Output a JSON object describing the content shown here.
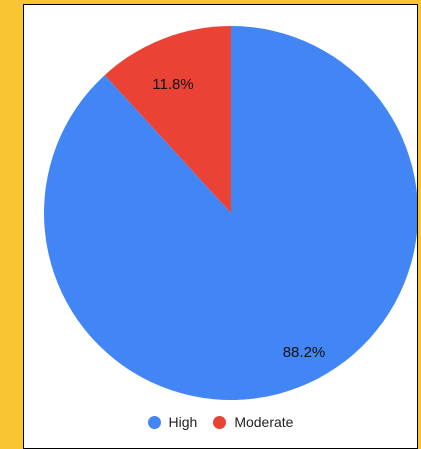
{
  "colors": {
    "frame": "#F9C631",
    "label_text": "#111111"
  },
  "chart_data": {
    "type": "pie",
    "categories": [
      "High",
      "Moderate"
    ],
    "values": [
      88.2,
      11.8
    ],
    "value_labels": [
      "88.2%",
      "11.8%"
    ],
    "colors": [
      "#4285F4",
      "#EA4335"
    ],
    "start_angle_deg": 0,
    "direction": "clockwise",
    "legend_position": "bottom"
  }
}
